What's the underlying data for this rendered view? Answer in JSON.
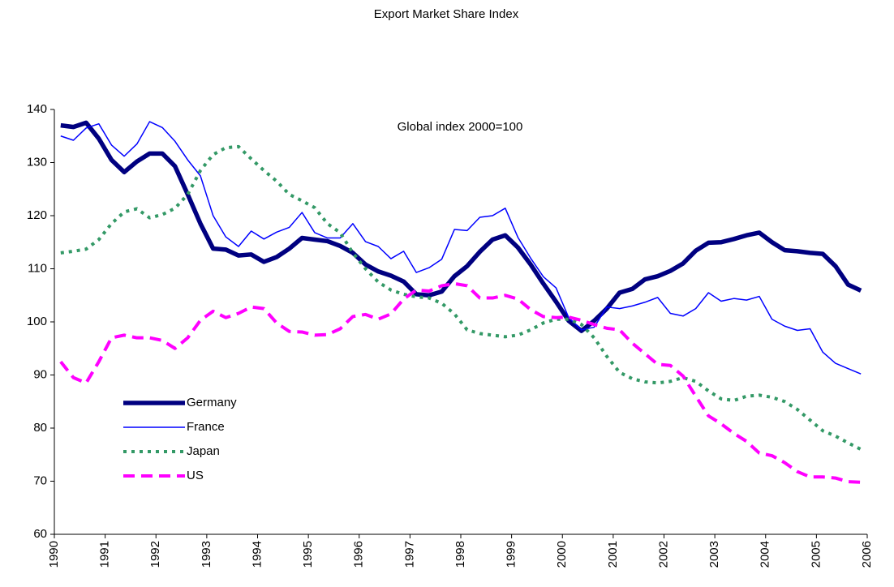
{
  "chart_data": {
    "type": "line",
    "title": "Export Market Share Index",
    "annotation": "Global index 2000=100",
    "x": [
      1990.125,
      1990.375,
      1990.625,
      1990.875,
      1991.125,
      1991.375,
      1991.625,
      1991.875,
      1992.125,
      1992.375,
      1992.625,
      1992.875,
      1993.125,
      1993.375,
      1993.625,
      1993.875,
      1994.125,
      1994.375,
      1994.625,
      1994.875,
      1995.125,
      1995.375,
      1995.625,
      1995.875,
      1996.125,
      1996.375,
      1996.625,
      1996.875,
      1997.125,
      1997.375,
      1997.625,
      1997.875,
      1998.125,
      1998.375,
      1998.625,
      1998.875,
      1999.125,
      1999.375,
      1999.625,
      1999.875,
      2000.125,
      2000.375,
      2000.625,
      2000.875,
      2001.125,
      2001.375,
      2001.625,
      2001.875,
      2002.125,
      2002.375,
      2002.625,
      2002.875,
      2003.125,
      2003.375,
      2003.625,
      2003.875,
      2004.125,
      2004.375,
      2004.625,
      2004.875,
      2005.125,
      2005.375,
      2005.625,
      2005.875
    ],
    "xlim": [
      1990,
      2006
    ],
    "xticks": [
      1990,
      1991,
      1992,
      1993,
      1994,
      1995,
      1996,
      1997,
      1998,
      1999,
      2000,
      2001,
      2002,
      2003,
      2004,
      2005,
      2006
    ],
    "ylim": [
      60,
      140
    ],
    "yticks": [
      60,
      70,
      80,
      90,
      100,
      110,
      120,
      130,
      140
    ],
    "legend": "lower-left",
    "series": [
      {
        "name": "Germany",
        "color": "#000080",
        "values": [
          137,
          136.7,
          137.5,
          134.5,
          130.5,
          128.2,
          130.2,
          131.7,
          131.7,
          129.3,
          124,
          118.5,
          113.8,
          113.6,
          112.5,
          112.7,
          111.3,
          112.2,
          113.8,
          115.8,
          115.5,
          115.2,
          114.3,
          113,
          110.8,
          109.5,
          108.7,
          107.6,
          105.2,
          105,
          105.7,
          108.6,
          110.5,
          113.2,
          115.5,
          116.3,
          114,
          110.8,
          107.2,
          103.8,
          100.2,
          98.3,
          100.2,
          102.5,
          105.5,
          106.2,
          108,
          108.6,
          109.6,
          111,
          113.4,
          114.9,
          115,
          115.6,
          116.3,
          116.8,
          115,
          113.5,
          113.3,
          113,
          112.8,
          110.5,
          107,
          105.9
        ]
      },
      {
        "name": "France",
        "color": "#0000ff",
        "values": [
          135,
          134.2,
          136.5,
          137.3,
          133.3,
          131.2,
          133.5,
          137.7,
          136.6,
          134,
          130.5,
          127.5,
          120,
          116,
          114.2,
          117.1,
          115.6,
          116.9,
          117.8,
          120.6,
          116.8,
          115.8,
          115.8,
          118.5,
          115.1,
          114.2,
          111.9,
          113.3,
          109.3,
          110.2,
          111.8,
          117.4,
          117.2,
          119.7,
          120,
          121.4,
          115.9,
          112,
          108.5,
          106.4,
          100.8,
          98.5,
          99,
          102.8,
          102.5,
          103,
          103.7,
          104.6,
          101.6,
          101.1,
          102.5,
          105.5,
          103.9,
          104.4,
          104.1,
          104.8,
          100.5,
          99.2,
          98.4,
          98.7,
          94.3,
          92.2,
          91.2,
          90.2
        ]
      },
      {
        "name": "Japan",
        "color": "#339966",
        "values": [
          113,
          113.3,
          113.7,
          115.5,
          118.5,
          120.7,
          121.3,
          119.6,
          120.2,
          121.4,
          124,
          128.5,
          131.5,
          132.8,
          133,
          130.7,
          128.5,
          126.5,
          124,
          122.8,
          121.5,
          118.5,
          116.8,
          113,
          110,
          107.5,
          106,
          105.2,
          104.7,
          104.5,
          103.5,
          101.5,
          98.5,
          97.8,
          97.5,
          97.2,
          97.5,
          98.5,
          99.8,
          100.5,
          100.5,
          99.5,
          97,
          93.5,
          90.5,
          89.3,
          88.7,
          88.5,
          88.8,
          89.5,
          88.8,
          87,
          85.5,
          85.2,
          86,
          86.2,
          85.8,
          85,
          83.5,
          81.5,
          79.5,
          78.5,
          77.2,
          76
        ]
      },
      {
        "name": "US",
        "color": "#ff00ff",
        "values": [
          92.5,
          89.5,
          88.5,
          92.5,
          97,
          97.5,
          97,
          97,
          96.5,
          95,
          97,
          100.3,
          102,
          100.8,
          101.6,
          102.8,
          102.5,
          99.8,
          98.2,
          98.1,
          97.5,
          97.6,
          98.7,
          101,
          101.4,
          100.5,
          101.5,
          104.3,
          106,
          105.8,
          106.8,
          107.2,
          106.8,
          104.5,
          104.5,
          105,
          104.3,
          102.3,
          101,
          100.8,
          100.9,
          100.3,
          99.5,
          98.8,
          98.5,
          96,
          94,
          92,
          91.8,
          89.8,
          86,
          82.3,
          80.8,
          79,
          77.5,
          75.3,
          74.8,
          73.5,
          71.8,
          70.8,
          70.8,
          70.6,
          69.9,
          69.8
        ]
      }
    ]
  }
}
